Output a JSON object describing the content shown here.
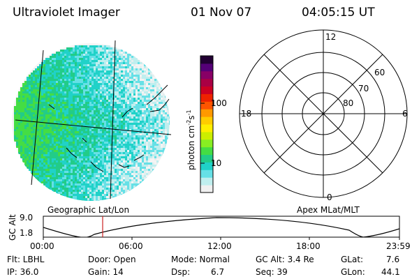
{
  "header": {
    "instrument": "Ultraviolet Imager",
    "date": "01 Nov 07",
    "time": "04:05:15 UT"
  },
  "colorbar": {
    "label": "photon cm",
    "label_exp1": "-2",
    "label_mid": "s",
    "label_exp2": "-1",
    "ticks": [
      "100",
      "10"
    ],
    "colors": [
      "#f0f0f0",
      "#bfeeee",
      "#66e0e6",
      "#20d2c8",
      "#22cc88",
      "#44dd44",
      "#88ee22",
      "#ccee00",
      "#ffee00",
      "#ffcc00",
      "#ff9900",
      "#ff5500",
      "#ee2200",
      "#cc0022",
      "#aa0044",
      "#880066",
      "#550077",
      "#220033"
    ]
  },
  "map_left": {
    "label": "Geographic Lat/Lon"
  },
  "map_right": {
    "label": "Apex MLat/MLT",
    "mlt_labels": {
      "top": "12",
      "left": "18",
      "right": "6",
      "bottom": "0"
    },
    "lat_labels": [
      "60",
      "70",
      "80"
    ]
  },
  "altitude_plot": {
    "ylabel": "GC Alt",
    "yticks": [
      "9.0",
      "1.8"
    ],
    "xticks": [
      "00:00",
      "06:00",
      "12:00",
      "18:00",
      "23:59"
    ],
    "marker_time_hours": 4.09
  },
  "info": {
    "flt": "Flt: LBHL",
    "door": "Door: Open",
    "mode": "Mode: Normal",
    "gc_alt": "GC Alt: 3.4 Re",
    "glat_label": "GLat:",
    "glat_value": "7.6",
    "ip": "IP: 36.0",
    "gain": "Gain: 14",
    "dsp_label": "Dsp:",
    "dsp_value": "6.7",
    "seq": "Seq: 39",
    "glon_label": "GLon:",
    "glon_value": "44.1"
  }
}
